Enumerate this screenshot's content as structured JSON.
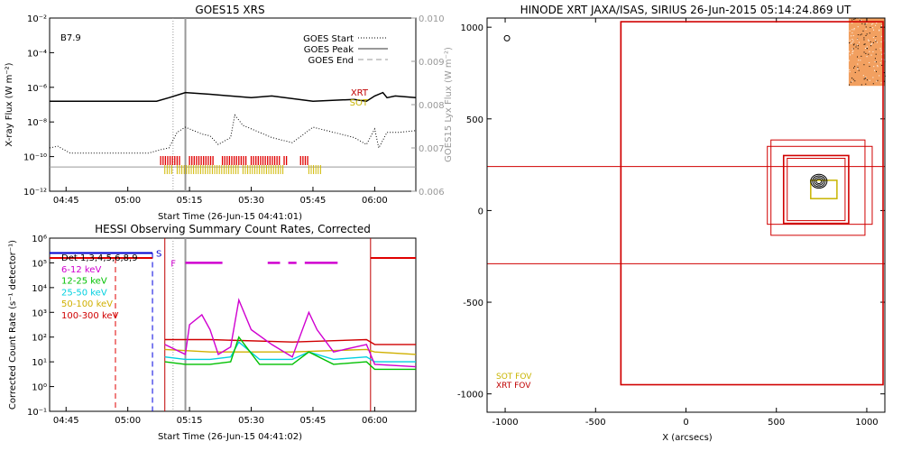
{
  "chart_data": [
    {
      "type": "line",
      "title": "GOES15 XRS",
      "xlabel": "Start Time (26-Jun-15 04:41:01)",
      "ylabel": "X-ray Flux (W m⁻²)",
      "ylabel_right": "GOES15 Lyx Flux (W m⁻²)",
      "x_ticks": [
        "04:45",
        "05:00",
        "05:15",
        "05:30",
        "05:45",
        "06:00"
      ],
      "y_ticks": [
        "10⁻²",
        "10⁻⁴",
        "10⁻⁶",
        "10⁻⁸",
        "10⁻¹⁰",
        "10⁻¹²"
      ],
      "y_ticks_right": [
        "0.010",
        "0.009",
        "0.008",
        "0.007",
        "0.006"
      ],
      "xlim": [
        "04:41",
        "06:10"
      ],
      "ylim_log10": [
        -12,
        -2
      ],
      "annotation": "B7.9",
      "legend": [
        "GOES Start",
        "GOES Peak",
        "GOES End"
      ],
      "side_labels": [
        {
          "text": "XRT",
          "color": "#c00000"
        },
        {
          "text": "SOT",
          "color": "#c8b400"
        }
      ],
      "goes_start": "05:11",
      "goes_peak": "05:14",
      "series": [
        {
          "name": "GOES long",
          "style": "solid",
          "color": "#000000",
          "x": [
            "04:41",
            "04:50",
            "05:00",
            "05:07",
            "05:10",
            "05:14",
            "05:20",
            "05:30",
            "05:35",
            "05:45",
            "05:55",
            "05:58",
            "06:00",
            "06:02",
            "06:03",
            "06:05",
            "06:10"
          ],
          "y": [
            -6.8,
            -6.8,
            -6.8,
            -6.8,
            -6.6,
            -6.3,
            -6.4,
            -6.6,
            -6.5,
            -6.8,
            -6.7,
            -6.8,
            -6.5,
            -6.3,
            -6.6,
            -6.5,
            -6.6
          ]
        },
        {
          "name": "GOES short",
          "style": "dotted",
          "color": "#000000",
          "x": [
            "04:41",
            "04:43",
            "04:46",
            "04:50",
            "05:00",
            "05:05",
            "05:08",
            "05:10",
            "05:12",
            "05:14",
            "05:16",
            "05:18",
            "05:20",
            "05:22",
            "05:25",
            "05:26",
            "05:28",
            "05:32",
            "05:35",
            "05:40",
            "05:45",
            "05:50",
            "05:55",
            "05:58",
            "06:00",
            "06:01",
            "06:03",
            "06:06",
            "06:10"
          ],
          "y": [
            -9.5,
            -9.4,
            -9.8,
            -9.8,
            -9.8,
            -9.8,
            -9.6,
            -9.5,
            -8.6,
            -8.3,
            -8.5,
            -8.7,
            -8.8,
            -9.3,
            -8.9,
            -7.6,
            -8.2,
            -8.6,
            -8.9,
            -9.2,
            -8.3,
            -8.6,
            -8.9,
            -9.3,
            -8.4,
            -9.5,
            -8.6,
            -8.6,
            -8.5
          ]
        },
        {
          "name": "Lyman-alpha",
          "style": "solid",
          "color": "#999999",
          "x": [
            "04:41",
            "05:00",
            "05:30",
            "06:00",
            "06:10"
          ],
          "y": [
            -10.6,
            -10.6,
            -10.6,
            -10.6,
            -10.6
          ]
        }
      ],
      "xrt_obs": [
        [
          "05:08",
          "05:13"
        ],
        [
          "05:15",
          "05:21"
        ],
        [
          "05:23",
          "05:29"
        ],
        [
          "05:30",
          "05:37"
        ],
        [
          "05:38",
          "05:39"
        ],
        [
          "05:42",
          "05:44"
        ]
      ],
      "sot_obs": [
        [
          "05:09",
          "05:11"
        ],
        [
          "05:12",
          "05:27"
        ],
        [
          "05:28",
          "05:38"
        ],
        [
          "05:44",
          "05:47"
        ]
      ]
    },
    {
      "type": "line",
      "title": "HESSI Observing Summary Count Rates, Corrected",
      "xlabel": "Start Time (26-Jun-15 04:41:02)",
      "ylabel": "Corrected Count Rate (s⁻¹ detector⁻¹)",
      "x_ticks": [
        "04:45",
        "05:00",
        "05:15",
        "05:30",
        "05:45",
        "06:00"
      ],
      "y_ticks": [
        "10⁶",
        "10⁵",
        "10⁴",
        "10³",
        "10²",
        "10¹",
        "10⁰",
        "10⁻¹"
      ],
      "xlim": [
        "04:41",
        "06:10"
      ],
      "ylim_log10": [
        -1,
        6
      ],
      "detectors": "Det 1,3,4,5,6,8,9",
      "legend_entries": [
        {
          "text": "Det 1,3,4,5,6,8,9",
          "color": "#000000"
        },
        {
          "text": "6-12 keV",
          "color": "#d000d0"
        },
        {
          "text": "12-25 keV",
          "color": "#00c000"
        },
        {
          "text": "25-50 keV",
          "color": "#00d0e0"
        },
        {
          "text": "50-100 keV",
          "color": "#d0b000"
        },
        {
          "text": "100-300 keV",
          "color": "#d00000"
        }
      ],
      "marker_s": "S",
      "marker_f": "F",
      "series": [
        {
          "name": "6-12 keV",
          "color": "#d000d0",
          "x": [
            "05:09",
            "05:14",
            "05:15",
            "05:18",
            "05:20",
            "05:22",
            "05:25",
            "05:27",
            "05:30",
            "05:35",
            "05:40",
            "05:44",
            "05:46",
            "05:50",
            "05:58",
            "06:00",
            "06:10"
          ],
          "y": [
            1.7,
            1.3,
            2.5,
            2.9,
            2.3,
            1.3,
            1.6,
            3.5,
            2.3,
            1.7,
            1.2,
            3.0,
            2.3,
            1.4,
            1.7,
            0.9,
            0.8
          ]
        },
        {
          "name": "12-25 keV",
          "color": "#00c000",
          "x": [
            "05:09",
            "05:14",
            "05:20",
            "05:25",
            "05:27",
            "05:32",
            "05:40",
            "05:44",
            "05:50",
            "05:58",
            "06:00",
            "06:10"
          ],
          "y": [
            1.0,
            0.9,
            0.9,
            1.0,
            2.0,
            0.9,
            0.9,
            1.4,
            0.9,
            1.0,
            0.7,
            0.7
          ]
        },
        {
          "name": "25-50 keV",
          "color": "#00d0e0",
          "x": [
            "05:09",
            "05:14",
            "05:20",
            "05:25",
            "05:27",
            "05:32",
            "05:40",
            "05:44",
            "05:50",
            "05:58",
            "06:00",
            "06:10"
          ],
          "y": [
            1.2,
            1.1,
            1.1,
            1.2,
            1.8,
            1.1,
            1.1,
            1.4,
            1.1,
            1.2,
            1.0,
            1.0
          ]
        },
        {
          "name": "50-100 keV",
          "color": "#d0b000",
          "x": [
            "05:09",
            "05:20",
            "05:40",
            "05:58",
            "06:00",
            "06:10"
          ],
          "y": [
            1.5,
            1.4,
            1.4,
            1.5,
            1.4,
            1.3
          ]
        },
        {
          "name": "100-300 keV",
          "color": "#d00000",
          "x": [
            "05:09",
            "05:20",
            "05:40",
            "05:58",
            "06:00",
            "06:10"
          ],
          "y": [
            1.9,
            1.9,
            1.8,
            1.9,
            1.7,
            1.7
          ]
        }
      ],
      "attenuator_blue_level": 5.4,
      "attenuator_red_level": 5.2,
      "flare_flag_segments": [
        [
          "05:14",
          "05:23"
        ],
        [
          "05:34",
          "05:37"
        ],
        [
          "05:39",
          "05:41"
        ],
        [
          "05:43",
          "05:51"
        ]
      ],
      "red_dashed_time": "04:57",
      "blue_dashed_time": "05:06",
      "red_solid_times": [
        "05:09",
        "05:59"
      ]
    },
    {
      "type": "scatter",
      "title": "HINODE XRT JAXA/ISAS, SIRIUS 26-Jun-2015 05:14:24.869 UT",
      "xlabel": "X (arcsecs)",
      "ylabel": "",
      "x_ticks": [
        "-1000",
        "-500",
        "0",
        "500",
        "1000"
      ],
      "y_ticks": [
        "1000",
        "500",
        "0",
        "-500",
        "-1000"
      ],
      "xlim": [
        -1100,
        1100
      ],
      "ylim": [
        -1100,
        1050
      ],
      "fov_legend": [
        {
          "text": "SOT FOV",
          "color": "#c8b400"
        },
        {
          "text": "XRT FOV",
          "color": "#c00000"
        }
      ],
      "xrt_fov_boxes": [
        [
          -360,
          -950,
          1090,
          1030
        ],
        [
          450,
          -75,
          1030,
          350
        ],
        [
          540,
          -70,
          900,
          300
        ],
        [
          560,
          -55,
          880,
          285
        ],
        [
          470,
          -135,
          990,
          385
        ]
      ],
      "sot_fov_box": [
        690,
        65,
        835,
        165
      ],
      "crosshair_x": [
        -360
      ],
      "crosshair_y": [
        240,
        -290
      ],
      "contour_center": [
        735,
        160
      ],
      "marker_point": [
        -990,
        940
      ]
    }
  ]
}
